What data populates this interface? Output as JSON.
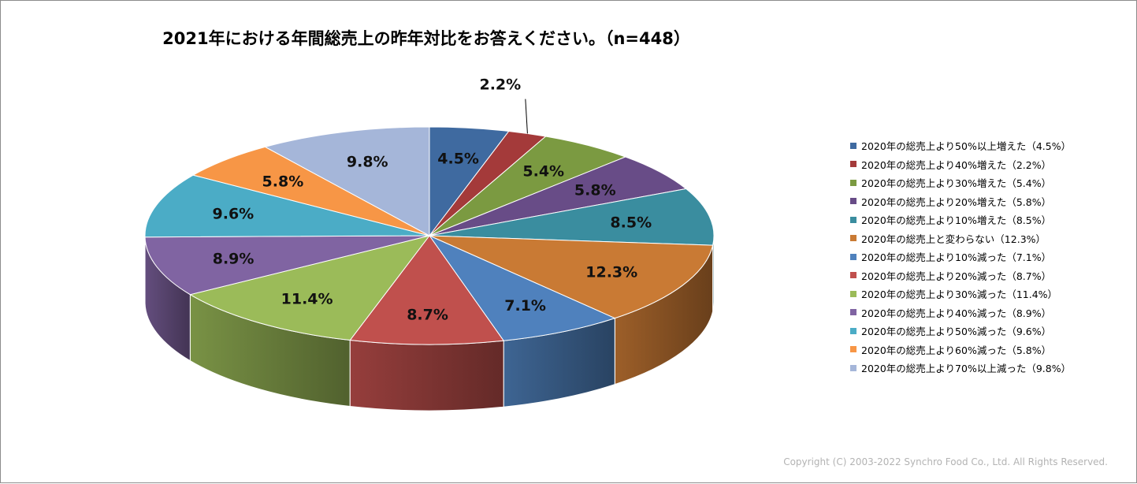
{
  "chart_data": {
    "type": "pie",
    "title": "2021年における年間総売上の昨年対比をお答えください。（n=448）",
    "legend_position": "right",
    "slices": [
      {
        "label": "2020年の総売上より50%以上増えた（4.5%）",
        "value": 4.5,
        "value_label": "4.5%",
        "color": "#3f6aa0"
      },
      {
        "label": "2020年の総売上より40%増えた（2.2%）",
        "value": 2.2,
        "value_label": "2.2%",
        "color": "#a43a3a"
      },
      {
        "label": "2020年の総売上より30%増えた（5.4%）",
        "value": 5.4,
        "value_label": "5.4%",
        "color": "#7b9a41"
      },
      {
        "label": "2020年の総売上より20%増えた（5.8%）",
        "value": 5.8,
        "value_label": "5.8%",
        "color": "#684c87"
      },
      {
        "label": "2020年の総売上より10%増えた（8.5%）",
        "value": 8.5,
        "value_label": "8.5%",
        "color": "#3a8d9f"
      },
      {
        "label": "2020年の総売上と変わらない（12.3%）",
        "value": 12.3,
        "value_label": "12.3%",
        "color": "#c97a34"
      },
      {
        "label": "2020年の総売上より10%減った（7.1%）",
        "value": 7.1,
        "value_label": "7.1%",
        "color": "#4f81bd"
      },
      {
        "label": "2020年の総売上より20%減った（8.7%）",
        "value": 8.7,
        "value_label": "8.7%",
        "color": "#c0504d"
      },
      {
        "label": "2020年の総売上より30%減った（11.4%）",
        "value": 11.4,
        "value_label": "11.4%",
        "color": "#9bbb59"
      },
      {
        "label": "2020年の総売上より40%減った（8.9%）",
        "value": 8.9,
        "value_label": "8.9%",
        "color": "#8064a2"
      },
      {
        "label": "2020年の総売上より50%減った（9.6%）",
        "value": 9.6,
        "value_label": "9.6%",
        "color": "#4bacc6"
      },
      {
        "label": "2020年の総売上より60%減った（5.8%）",
        "value": 5.8,
        "value_label": "5.8%",
        "color": "#f79646"
      },
      {
        "label": "2020年の総売上より70%以上減った（9.8%）",
        "value": 9.8,
        "value_label": "9.8%",
        "color": "#a5b6d9"
      }
    ]
  },
  "copyright": "Copyright (C) 2003-2022 Synchro Food Co., Ltd. All Rights Reserved."
}
